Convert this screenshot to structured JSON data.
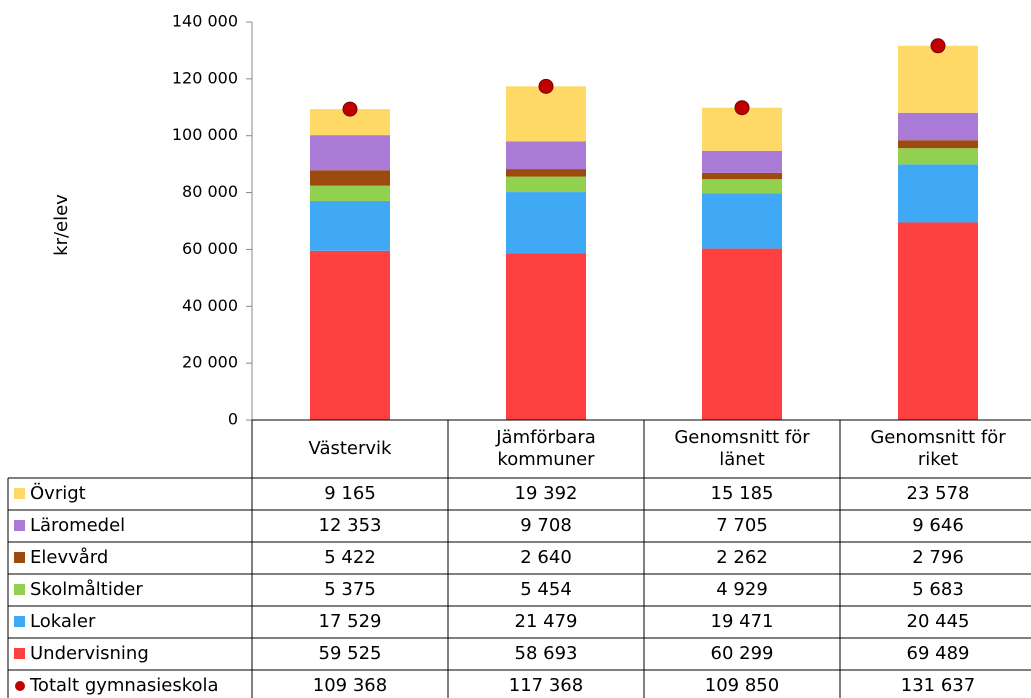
{
  "chart_data": {
    "type": "stacked_bar",
    "y_label": "kr/elev",
    "categories": [
      "Västervik",
      "Jämförbara kommuner",
      "Genomsnitt för länet",
      "Genomsnitt för riket"
    ],
    "series": [
      {
        "name": "Övrigt",
        "color": "#ffd966",
        "values": [
          9165,
          19392,
          15185,
          23578
        ],
        "value_labels": [
          "9 165",
          "19 392",
          "15 185",
          "23 578"
        ]
      },
      {
        "name": "Läromedel",
        "color": "#a97bd6",
        "values": [
          12353,
          9708,
          7705,
          9646
        ],
        "value_labels": [
          "12 353",
          "9 708",
          "7 705",
          "9 646"
        ]
      },
      {
        "name": "Elevvård",
        "color": "#9c4a0e",
        "values": [
          5422,
          2640,
          2262,
          2796
        ],
        "value_labels": [
          "5 422",
          "2 640",
          "2 262",
          "2 796"
        ]
      },
      {
        "name": "Skolmåltider",
        "color": "#92d050",
        "values": [
          5375,
          5454,
          4929,
          5683
        ],
        "value_labels": [
          "5 375",
          "5 454",
          "4 929",
          "5 683"
        ]
      },
      {
        "name": "Lokaler",
        "color": "#3fa9f5",
        "values": [
          17529,
          21479,
          19471,
          20445
        ],
        "value_labels": [
          "17 529",
          "21 479",
          "19 471",
          "20 445"
        ]
      },
      {
        "name": "Undervisning",
        "color": "#ff4040",
        "values": [
          59525,
          58693,
          60299,
          69489
        ],
        "value_labels": [
          "59 525",
          "58 693",
          "60 299",
          "69 489"
        ]
      }
    ],
    "totals": {
      "name": "Totalt gymnasieskola",
      "color": "#c00000",
      "values": [
        109368,
        117368,
        109850,
        131637
      ],
      "value_labels": [
        "109 368",
        "117 368",
        "109 850",
        "131 637"
      ]
    },
    "ylim": [
      0,
      140000
    ],
    "yticks": [
      0,
      {
        "value": 20000,
        "label": "20 000"
      },
      {
        "value": 40000,
        "label": "40 000"
      },
      {
        "value": 60000,
        "label": "60 000"
      },
      {
        "value": 80000,
        "label": "80 000"
      },
      {
        "value": 100000,
        "label": "100 000"
      },
      {
        "value": 120000,
        "label": "120 000"
      },
      {
        "value": 140000,
        "label": "140 000"
      }
    ]
  }
}
